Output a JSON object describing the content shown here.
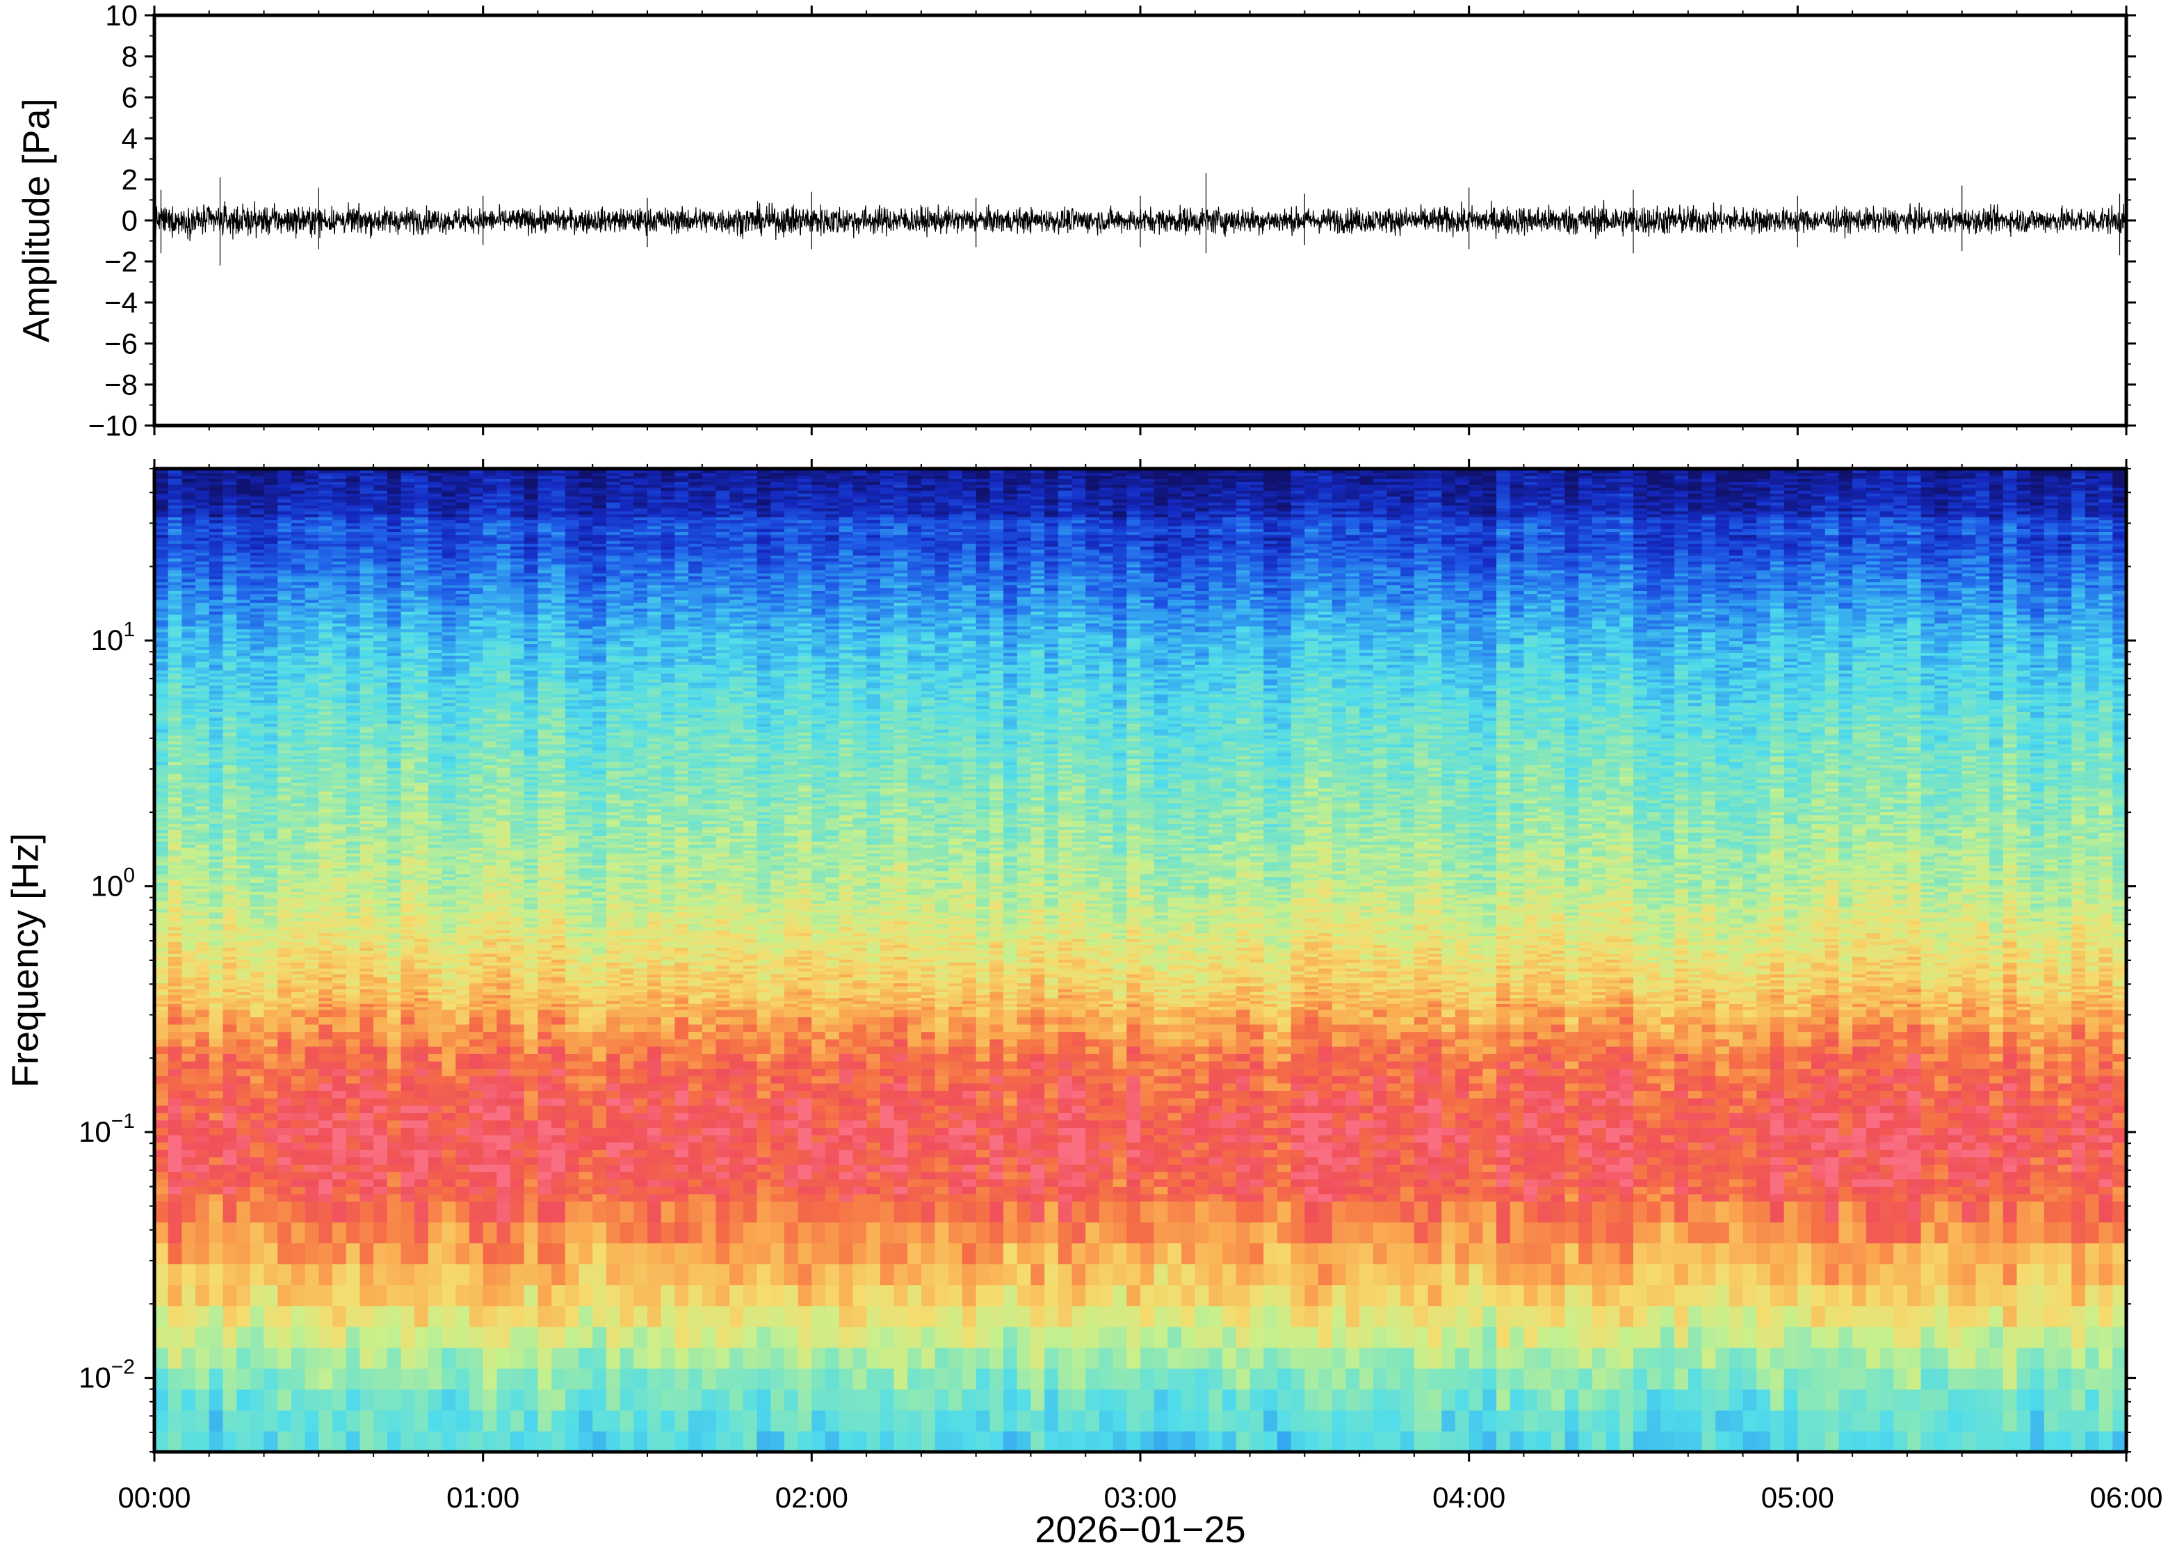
{
  "chart_data": [
    {
      "type": "line",
      "panel": "waveform",
      "title": "",
      "xlabel": "",
      "ylabel": "Amplitude [Pa]",
      "ylim": [
        -10,
        10
      ],
      "y_ticks": [
        -10,
        -8,
        -6,
        -4,
        -2,
        0,
        2,
        4,
        6,
        8,
        10
      ],
      "y_tick_labels": [
        "−10",
        "−8",
        "−6",
        "−4",
        "−2",
        "0",
        "2",
        "4",
        "6",
        "8",
        "10"
      ],
      "xlim_hours": [
        0,
        6
      ],
      "series_description": "noise trace centered on 0 Pa, typical amplitude about ±0.8 Pa, peaks near ±2.3 Pa",
      "envelope": {
        "t_hours": [
          0.0,
          0.2,
          0.5,
          1.0,
          1.5,
          2.0,
          2.5,
          3.0,
          3.2,
          3.5,
          4.0,
          4.5,
          5.0,
          5.5,
          6.0
        ],
        "typical_abs_pa": [
          0.8,
          0.9,
          0.8,
          0.7,
          0.7,
          0.9,
          0.7,
          0.7,
          0.8,
          0.7,
          0.8,
          0.9,
          0.7,
          0.7,
          0.8
        ],
        "max_pa": [
          1.5,
          2.1,
          1.6,
          1.2,
          1.1,
          1.4,
          1.1,
          1.2,
          2.3,
          1.3,
          1.6,
          1.5,
          1.2,
          1.7,
          1.3
        ],
        "min_pa": [
          -1.6,
          -2.2,
          -1.4,
          -1.2,
          -1.3,
          -1.4,
          -1.3,
          -1.3,
          -1.6,
          -1.2,
          -1.4,
          -1.6,
          -1.3,
          -1.5,
          -1.7
        ]
      },
      "line_color": "#000000",
      "grid": false
    },
    {
      "type": "heatmap",
      "panel": "spectrogram",
      "title": "",
      "xlabel": "2026−01−25",
      "ylabel": "Frequency [Hz]",
      "y_scale": "log",
      "ylim": [
        0.005,
        50
      ],
      "y_ticks": [
        0.01,
        0.1,
        1,
        10
      ],
      "y_tick_labels": [
        {
          "base": "10",
          "exp": "−2"
        },
        {
          "base": "10",
          "exp": "−1"
        },
        {
          "base": "10",
          "exp": "0"
        },
        {
          "base": "10",
          "exp": "1"
        }
      ],
      "x_tick_labels": [
        "00:00",
        "01:00",
        "02:00",
        "03:00",
        "04:00",
        "05:00",
        "06:00"
      ],
      "xlim_hours": [
        0,
        6
      ],
      "colormap": "jet (blue = low power, red = high power)",
      "relative_power_profile": {
        "freq_hz": [
          0.005,
          0.008,
          0.012,
          0.02,
          0.035,
          0.06,
          0.1,
          0.2,
          0.4,
          1,
          2,
          5,
          10,
          20,
          30,
          50
        ],
        "level": [
          0.4,
          0.46,
          0.55,
          0.7,
          0.82,
          0.92,
          0.95,
          0.88,
          0.72,
          0.58,
          0.52,
          0.44,
          0.35,
          0.22,
          0.12,
          0.04
        ]
      },
      "notable_features": [
        "narrow band near 30 Hz slightly brighter than surroundings",
        "maximum power between about 0.03 Hz and 0.2 Hz"
      ],
      "grid": false
    }
  ]
}
